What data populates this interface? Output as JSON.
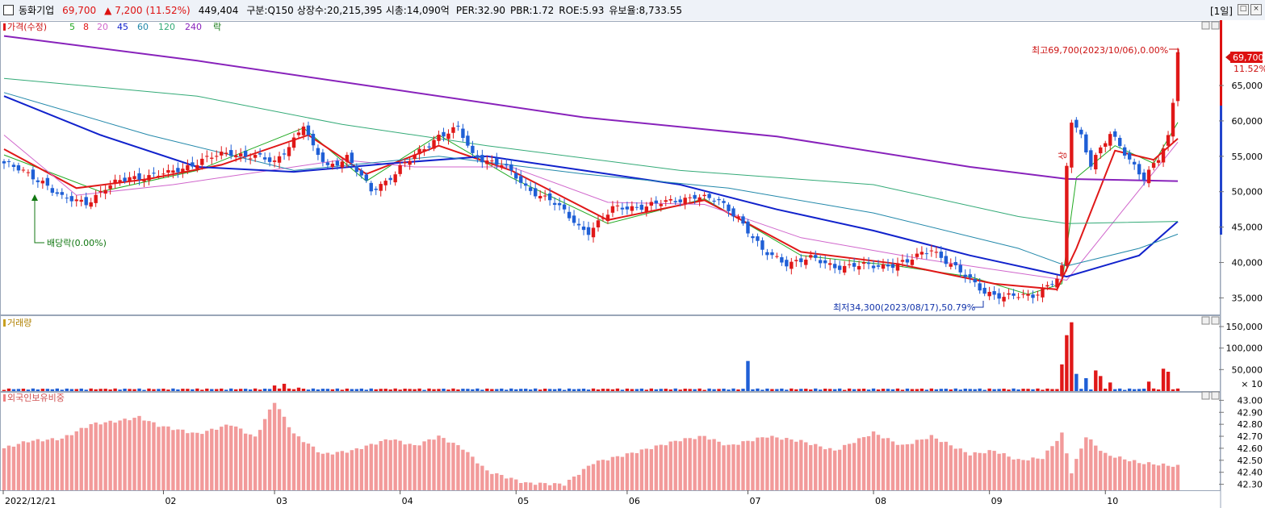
{
  "header": {
    "name": "동화기업",
    "price": "69,700",
    "change": "▲ 7,200",
    "change_pct": "(11.52%)",
    "volume": "449,404",
    "market": "구분:Q150",
    "listed": "상장수:20,215,395",
    "mcap": "시총:14,090억",
    "per": "PER:32.90",
    "pbr": "PBR:1.72",
    "roe": "ROE:5.93",
    "reserve": "유보율:8,733.55",
    "period": "[1일]"
  },
  "legend": {
    "price": "가격(수정)",
    "ma5": "5",
    "ma8": "8",
    "ma20": "20",
    "ma45": "45",
    "ma60": "60",
    "ma120": "120",
    "ma240": "240",
    "rak": "락"
  },
  "panel_titles": {
    "volume": "거래량",
    "foreign": "외국인보유비중"
  },
  "annotations": {
    "high": "최고69,700(2023/10/06),0.00%",
    "low": "최저34,300(2023/08/17),50.79%",
    "dividend": "배당락(0.00%)",
    "sang": "상",
    "last_price": "69,700",
    "last_pct": "11.52%"
  },
  "chart_data": [
    {
      "type": "candlestick",
      "title": "가격(수정)",
      "x_ticks": [
        "2022/12/21",
        "02",
        "03",
        "04",
        "05",
        "06",
        "07",
        "08",
        "09",
        "10"
      ],
      "ylim": [
        33000,
        74000
      ],
      "y_ticks": [
        "35,000",
        "40,000",
        "45,000",
        "50,000",
        "55,000",
        "60,000",
        "65,000"
      ],
      "anchors": [
        {
          "t": 0,
          "close": 54000
        },
        {
          "t": 8,
          "close": 51500
        },
        {
          "t": 12,
          "close": 49000
        },
        {
          "t": 17,
          "close": 48500
        },
        {
          "t": 21,
          "close": 50500
        },
        {
          "t": 26,
          "close": 52000
        },
        {
          "t": 34,
          "close": 52500
        },
        {
          "t": 41,
          "close": 54500
        },
        {
          "t": 47,
          "close": 55500
        },
        {
          "t": 52,
          "close": 55000
        },
        {
          "t": 56,
          "close": 54000
        },
        {
          "t": 60,
          "close": 57500
        },
        {
          "t": 62,
          "close": 59500
        },
        {
          "t": 64,
          "close": 56000
        },
        {
          "t": 67,
          "close": 53500
        },
        {
          "t": 71,
          "close": 55000
        },
        {
          "t": 73,
          "close": 53000
        },
        {
          "t": 76,
          "close": 50000
        },
        {
          "t": 79,
          "close": 51500
        },
        {
          "t": 82,
          "close": 53500
        },
        {
          "t": 87,
          "close": 56000
        },
        {
          "t": 90,
          "close": 58000
        },
        {
          "t": 94,
          "close": 59000
        },
        {
          "t": 97,
          "close": 55000
        },
        {
          "t": 103,
          "close": 54000
        },
        {
          "t": 108,
          "close": 50500
        },
        {
          "t": 113,
          "close": 49000
        },
        {
          "t": 119,
          "close": 45000
        },
        {
          "t": 121,
          "close": 44500
        },
        {
          "t": 126,
          "close": 47500
        },
        {
          "t": 132,
          "close": 48000
        },
        {
          "t": 138,
          "close": 48500
        },
        {
          "t": 143,
          "close": 49500
        },
        {
          "t": 148,
          "close": 48500
        },
        {
          "t": 152,
          "close": 46500
        },
        {
          "t": 157,
          "close": 41500
        },
        {
          "t": 162,
          "close": 40000
        },
        {
          "t": 167,
          "close": 40500
        },
        {
          "t": 172,
          "close": 39500
        },
        {
          "t": 180,
          "close": 39500
        },
        {
          "t": 187,
          "close": 40000
        },
        {
          "t": 192,
          "close": 42000
        },
        {
          "t": 198,
          "close": 38500
        },
        {
          "t": 203,
          "close": 36000
        },
        {
          "t": 207,
          "close": 35000
        },
        {
          "t": 213,
          "close": 35500
        },
        {
          "t": 218,
          "close": 37500
        },
        {
          "t": 219,
          "close": 39000
        },
        {
          "t": 220,
          "close": 53500
        },
        {
          "t": 221,
          "close": 60000
        },
        {
          "t": 223,
          "close": 58000
        },
        {
          "t": 225,
          "close": 54000
        },
        {
          "t": 227,
          "close": 56000
        },
        {
          "t": 229,
          "close": 58000
        },
        {
          "t": 232,
          "close": 55500
        },
        {
          "t": 236,
          "close": 52000
        },
        {
          "t": 239,
          "close": 54500
        },
        {
          "t": 241,
          "close": 57500
        },
        {
          "t": 242,
          "close": 62500
        },
        {
          "t": 243,
          "close": 69700
        }
      ],
      "ma_lines": [
        {
          "name": "5",
          "color": "#22aa22",
          "points": [
            [
              0,
              55200
            ],
            [
              20,
              50000
            ],
            [
              40,
              53000
            ],
            [
              62,
              59000
            ],
            [
              75,
              51500
            ],
            [
              90,
              58000
            ],
            [
              105,
              52000
            ],
            [
              125,
              45500
            ],
            [
              145,
              49000
            ],
            [
              165,
              41000
            ],
            [
              185,
              39500
            ],
            [
              200,
              38000
            ],
            [
              212,
              35500
            ],
            [
              219,
              37000
            ],
            [
              222,
              52000
            ],
            [
              230,
              56500
            ],
            [
              238,
              54000
            ],
            [
              243,
              59800
            ]
          ]
        },
        {
          "name": "8",
          "color": "#e01818",
          "points": [
            [
              0,
              56000
            ],
            [
              15,
              50500
            ],
            [
              30,
              51800
            ],
            [
              45,
              53800
            ],
            [
              63,
              58000
            ],
            [
              75,
              52500
            ],
            [
              90,
              56500
            ],
            [
              105,
              53000
            ],
            [
              125,
              46000
            ],
            [
              145,
              48800
            ],
            [
              165,
              41500
            ],
            [
              185,
              39800
            ],
            [
              205,
              37000
            ],
            [
              218,
              36200
            ],
            [
              222,
              42000
            ],
            [
              230,
              55800
            ],
            [
              238,
              54500
            ],
            [
              243,
              57500
            ]
          ]
        },
        {
          "name": "20",
          "color": "#d066cc",
          "points": [
            [
              0,
              58000
            ],
            [
              15,
              49500
            ],
            [
              35,
              51000
            ],
            [
              55,
              53000
            ],
            [
              70,
              54500
            ],
            [
              85,
              53500
            ],
            [
              105,
              53500
            ],
            [
              125,
              48500
            ],
            [
              145,
              48200
            ],
            [
              165,
              43500
            ],
            [
              190,
              40500
            ],
            [
              210,
              38500
            ],
            [
              220,
              37500
            ],
            [
              230,
              46000
            ],
            [
              243,
              57000
            ]
          ]
        },
        {
          "name": "45",
          "color": "#1122cc",
          "points": [
            [
              0,
              63500
            ],
            [
              20,
              58000
            ],
            [
              40,
              53500
            ],
            [
              60,
              52800
            ],
            [
              80,
              54000
            ],
            [
              100,
              55000
            ],
            [
              120,
              53000
            ],
            [
              140,
              51000
            ],
            [
              160,
              47500
            ],
            [
              180,
              44500
            ],
            [
              200,
              41000
            ],
            [
              220,
              38000
            ],
            [
              235,
              41000
            ],
            [
              243,
              45800
            ]
          ]
        },
        {
          "name": "60",
          "color": "#2288aa",
          "points": [
            [
              0,
              64000
            ],
            [
              30,
              58000
            ],
            [
              60,
              53000
            ],
            [
              90,
              55000
            ],
            [
              120,
              52500
            ],
            [
              150,
              50500
            ],
            [
              180,
              47000
            ],
            [
              210,
              42000
            ],
            [
              220,
              39500
            ],
            [
              235,
              42000
            ],
            [
              243,
              44000
            ]
          ]
        },
        {
          "name": "120",
          "color": "#33aa77",
          "points": [
            [
              0,
              66000
            ],
            [
              40,
              63500
            ],
            [
              70,
              59500
            ],
            [
              100,
              56500
            ],
            [
              140,
              53000
            ],
            [
              180,
              51000
            ],
            [
              210,
              46500
            ],
            [
              220,
              45500
            ],
            [
              243,
              45800
            ]
          ]
        },
        {
          "name": "240",
          "color": "#8822bb",
          "points": [
            [
              0,
              72000
            ],
            [
              40,
              68500
            ],
            [
              80,
              64500
            ],
            [
              120,
              60500
            ],
            [
              160,
              57800
            ],
            [
              200,
              53500
            ],
            [
              220,
              51800
            ],
            [
              243,
              51500
            ]
          ]
        }
      ]
    },
    {
      "type": "bar",
      "title": "거래량",
      "ylim": [
        0,
        165000
      ],
      "y_ticks": [
        "150,000",
        "100,000",
        "50,000"
      ],
      "unit": "× 10",
      "base": 4000,
      "spikes": [
        [
          56,
          13000
        ],
        [
          58,
          17000
        ],
        [
          61,
          8000
        ],
        [
          154,
          70000
        ],
        [
          219,
          62000
        ],
        [
          220,
          130000
        ],
        [
          221,
          160000
        ],
        [
          222,
          40000
        ],
        [
          224,
          30000
        ],
        [
          226,
          48000
        ],
        [
          227,
          35000
        ],
        [
          229,
          20000
        ],
        [
          237,
          22000
        ],
        [
          240,
          52000
        ],
        [
          241,
          45000
        ]
      ]
    },
    {
      "type": "bar",
      "title": "외국인보유비중",
      "ylim": [
        42.25,
        43.07
      ],
      "y_ticks": [
        "43.00",
        "42.90",
        "42.80",
        "42.70",
        "42.60",
        "42.50",
        "42.40",
        "42.30"
      ],
      "anchors": [
        [
          0,
          42.6
        ],
        [
          5,
          42.66
        ],
        [
          12,
          42.68
        ],
        [
          18,
          42.8
        ],
        [
          24,
          42.83
        ],
        [
          28,
          42.86
        ],
        [
          32,
          42.79
        ],
        [
          40,
          42.72
        ],
        [
          47,
          42.8
        ],
        [
          52,
          42.69
        ],
        [
          56,
          42.99
        ],
        [
          60,
          42.72
        ],
        [
          66,
          42.55
        ],
        [
          72,
          42.58
        ],
        [
          80,
          42.68
        ],
        [
          85,
          42.62
        ],
        [
          90,
          42.7
        ],
        [
          95,
          42.6
        ],
        [
          100,
          42.41
        ],
        [
          108,
          42.31
        ],
        [
          116,
          42.3
        ],
        [
          122,
          42.48
        ],
        [
          130,
          42.56
        ],
        [
          140,
          42.67
        ],
        [
          145,
          42.7
        ],
        [
          150,
          42.62
        ],
        [
          158,
          42.7
        ],
        [
          165,
          42.66
        ],
        [
          172,
          42.58
        ],
        [
          180,
          42.73
        ],
        [
          186,
          42.62
        ],
        [
          192,
          42.7
        ],
        [
          200,
          42.55
        ],
        [
          205,
          42.58
        ],
        [
          210,
          42.5
        ],
        [
          215,
          42.52
        ],
        [
          219,
          42.72
        ],
        [
          221,
          42.4
        ],
        [
          224,
          42.7
        ],
        [
          228,
          42.55
        ],
        [
          235,
          42.48
        ],
        [
          243,
          42.45
        ]
      ]
    }
  ]
}
